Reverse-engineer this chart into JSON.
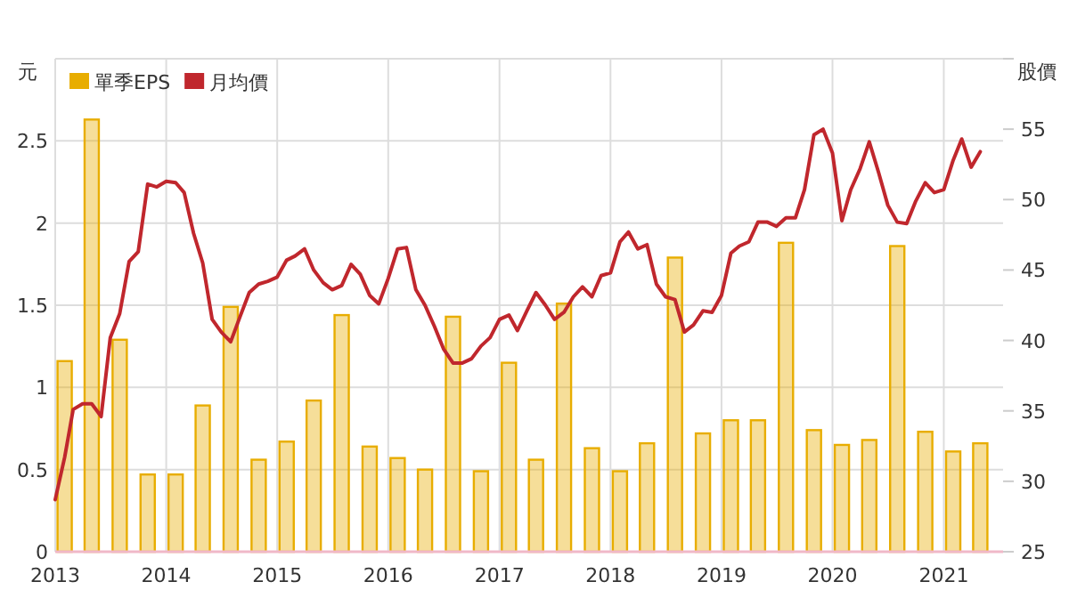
{
  "chart_data": {
    "type": "bar",
    "ylabel": "元",
    "y2label": "股價",
    "grid": true,
    "legend": "top left",
    "xlim": [
      "2013-01-01",
      "2021-07-15"
    ],
    "xticks": [
      "2013",
      "2014",
      "2015",
      "2016",
      "2017",
      "2018",
      "2019",
      "2020",
      "2021"
    ],
    "ylim": [
      0,
      3
    ],
    "yticks": [
      0,
      0.5,
      1,
      1.5,
      2,
      2.5,
      {
        "value": 3,
        "label": null
      }
    ],
    "y2lim": [
      25,
      60
    ],
    "y2ticks": [
      25,
      30,
      35,
      40,
      45,
      50,
      55,
      {
        "value": 60,
        "label": null
      }
    ],
    "series": [
      {
        "name": "單季EPS",
        "color": "#e8ad00",
        "x": [
          "2013-02",
          "2013-05",
          "2013-08",
          "2013-11",
          "2014-02",
          "2014-05",
          "2014-08",
          "2014-11",
          "2015-02",
          "2015-05",
          "2015-08",
          "2015-11",
          "2016-02",
          "2016-05",
          "2016-08",
          "2016-11",
          "2017-02",
          "2017-05",
          "2017-08",
          "2017-11",
          "2018-02",
          "2018-05",
          "2018-08",
          "2018-11",
          "2019-02",
          "2019-05",
          "2019-08",
          "2019-11",
          "2020-02",
          "2020-05",
          "2020-08",
          "2020-11",
          "2021-02",
          "2021-05"
        ],
        "values": [
          1.16,
          2.63,
          1.29,
          0.47,
          0.47,
          0.89,
          1.49,
          0.56,
          0.67,
          0.92,
          1.44,
          0.64,
          0.57,
          0.5,
          1.43,
          0.49,
          1.15,
          0.56,
          1.51,
          0.63,
          0.49,
          0.66,
          1.79,
          0.72,
          0.8,
          0.8,
          1.88,
          0.74,
          0.65,
          0.68,
          1.86,
          0.73,
          0.61,
          0.66
        ]
      },
      {
        "name": "月均價",
        "type": "line",
        "axis": "y2",
        "color": "#c0272d",
        "x": [
          "2013-01",
          "2013-02",
          "2013-03",
          "2013-04",
          "2013-05",
          "2013-06",
          "2013-07",
          "2013-08",
          "2013-09",
          "2013-10",
          "2013-11",
          "2013-12",
          "2014-01",
          "2014-02",
          "2014-03",
          "2014-04",
          "2014-05",
          "2014-06",
          "2014-07",
          "2014-08",
          "2014-09",
          "2014-10",
          "2014-11",
          "2014-12",
          "2015-01",
          "2015-02",
          "2015-03",
          "2015-04",
          "2015-05",
          "2015-06",
          "2015-07",
          "2015-08",
          "2015-09",
          "2015-10",
          "2015-11",
          "2015-12",
          "2016-01",
          "2016-02",
          "2016-03",
          "2016-04",
          "2016-05",
          "2016-06",
          "2016-07",
          "2016-08",
          "2016-09",
          "2016-10",
          "2016-11",
          "2016-12",
          "2017-01",
          "2017-02",
          "2017-03",
          "2017-04",
          "2017-05",
          "2017-06",
          "2017-07",
          "2017-08",
          "2017-09",
          "2017-10",
          "2017-11",
          "2017-12",
          "2018-01",
          "2018-02",
          "2018-03",
          "2018-04",
          "2018-05",
          "2018-06",
          "2018-07",
          "2018-08",
          "2018-09",
          "2018-10",
          "2018-11",
          "2018-12",
          "2019-01",
          "2019-02",
          "2019-03",
          "2019-04",
          "2019-05",
          "2019-06",
          "2019-07",
          "2019-08",
          "2019-09",
          "2019-10",
          "2019-11",
          "2019-12",
          "2020-01",
          "2020-02",
          "2020-03",
          "2020-04",
          "2020-05",
          "2020-06",
          "2020-07",
          "2020-08",
          "2020-09",
          "2020-10",
          "2020-11",
          "2020-12",
          "2021-01",
          "2021-02",
          "2021-03",
          "2021-04",
          "2021-05"
        ],
        "values": [
          28.7,
          31.7,
          35.1,
          35.5,
          35.5,
          34.6,
          40.2,
          41.9,
          45.6,
          46.3,
          51.1,
          50.9,
          51.3,
          51.2,
          50.5,
          47.6,
          45.5,
          41.5,
          40.6,
          39.9,
          41.7,
          43.4,
          44.0,
          44.2,
          44.5,
          45.7,
          46.0,
          46.5,
          45.0,
          44.1,
          43.6,
          43.9,
          45.4,
          44.7,
          43.2,
          42.6,
          44.4,
          46.5,
          46.6,
          43.6,
          42.5,
          41.0,
          39.4,
          38.4,
          38.4,
          38.7,
          39.6,
          40.2,
          41.5,
          41.8,
          40.7,
          42.1,
          43.4,
          42.5,
          41.5,
          42.0,
          43.1,
          43.8,
          43.1,
          44.6,
          44.8,
          47.0,
          47.7,
          46.5,
          46.8,
          44.0,
          43.1,
          42.9,
          40.6,
          41.1,
          42.1,
          42.0,
          43.2,
          46.2,
          46.7,
          47.0,
          48.4,
          48.4,
          48.1,
          48.7,
          48.7,
          50.7,
          54.6,
          55.0,
          53.3,
          48.5,
          50.7,
          52.2,
          54.1,
          51.9,
          49.6,
          48.4,
          48.3,
          49.9,
          51.2,
          50.5,
          50.7,
          52.8,
          54.3,
          52.3,
          53.4
        ]
      }
    ]
  }
}
